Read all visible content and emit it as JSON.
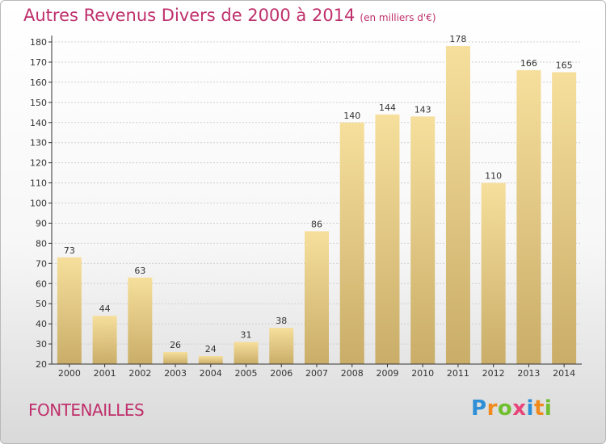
{
  "title": "Autres Revenus Divers de 2000 à 2014",
  "unit": "(en milliers d'€)",
  "city": "FONTENAILLES",
  "logo": {
    "letters": [
      "P",
      "r",
      "o",
      "x",
      "i",
      "t",
      "i"
    ],
    "colors": [
      "#2f8fd6",
      "#f08a1c",
      "#6fbf2f",
      "#e9447a",
      "#2f8fd6",
      "#f08a1c",
      "#6fbf2f"
    ]
  },
  "colors": {
    "title": "#bf2f6b",
    "bar_light": "#f6df9c",
    "bar_dark": "#c9ad68",
    "axis": "#333333"
  },
  "chart_data": {
    "type": "bar",
    "categories": [
      "2000",
      "2001",
      "2002",
      "2003",
      "2004",
      "2005",
      "2006",
      "2007",
      "2008",
      "2009",
      "2010",
      "2011",
      "2012",
      "2013",
      "2014"
    ],
    "values": [
      73,
      44,
      63,
      26,
      24,
      31,
      38,
      86,
      140,
      144,
      143,
      178,
      110,
      166,
      165
    ],
    "ylim": [
      20,
      180
    ],
    "yticks": [
      20,
      30,
      40,
      50,
      60,
      70,
      80,
      90,
      100,
      110,
      120,
      130,
      140,
      150,
      160,
      170,
      180
    ],
    "grid": "horizontal",
    "data_labels": true
  }
}
